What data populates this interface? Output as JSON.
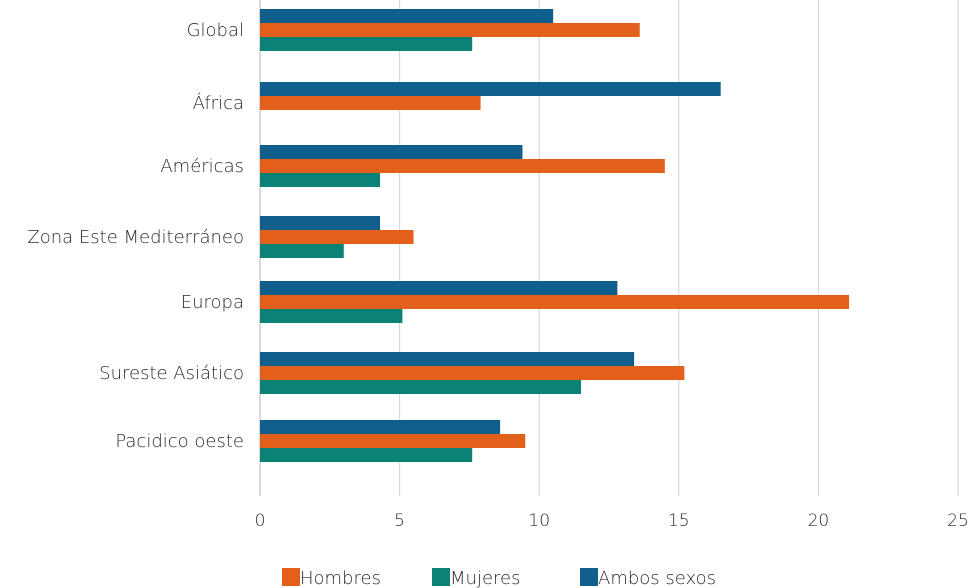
{
  "chart_data": {
    "type": "bar",
    "orientation": "horizontal",
    "categories": [
      "Global",
      "África",
      "Américas",
      "Zona Este Mediterráneo",
      "Europa",
      "Sureste Asiático",
      "Pacidico oeste"
    ],
    "series": [
      {
        "name": "Ambos sexos",
        "color": "#0f5e8c",
        "values": [
          10.5,
          16.5,
          9.4,
          4.3,
          12.8,
          13.4,
          8.6
        ]
      },
      {
        "name": "Hombres",
        "color": "#e35f1c",
        "values": [
          13.6,
          7.9,
          14.5,
          5.5,
          21.1,
          15.2,
          9.5
        ]
      },
      {
        "name": "Mujeres",
        "color": "#0a8276",
        "values": [
          7.6,
          null,
          4.3,
          3.0,
          5.1,
          11.5,
          7.6
        ]
      }
    ],
    "legend_order": [
      "Hombres",
      "Mujeres",
      "Ambos sexos"
    ],
    "xticks": [
      "0",
      "5",
      "10",
      "15",
      "20",
      "25"
    ],
    "xlim": [
      0,
      25
    ],
    "grid": "vertical",
    "legend_position": "bottom",
    "title": "",
    "xlabel": "",
    "ylabel": ""
  }
}
